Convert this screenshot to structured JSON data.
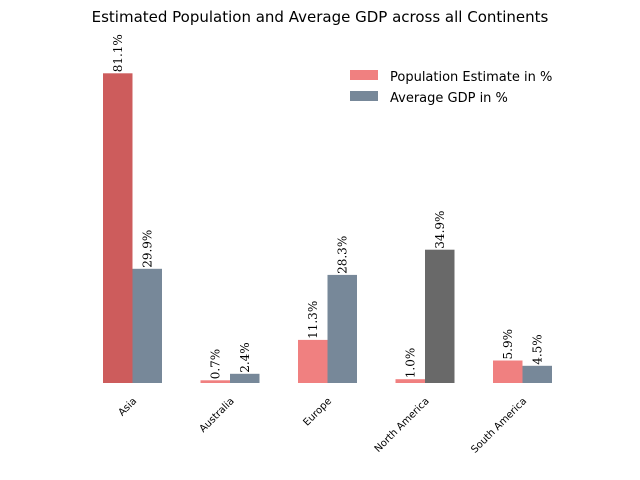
{
  "chart_data": {
    "type": "bar",
    "title": "Estimated Population and Average GDP across all Continents",
    "xlabel": "",
    "ylabel": "",
    "ylim": [
      0,
      88
    ],
    "grid": false,
    "legend_position": "top-right",
    "categories": [
      "Asia",
      "Australia",
      "Europe",
      "North America",
      "South America"
    ],
    "series": [
      {
        "name": "Population Estimate in %",
        "color": "#f08080",
        "values": [
          81.1,
          0.7,
          11.3,
          1.0,
          5.9
        ],
        "labels": [
          "81.1%",
          "0.7%",
          "11.3%",
          "1.0%",
          "5.9%"
        ],
        "bar_colors": [
          "#cd5c5c",
          "#f08080",
          "#f08080",
          "#f08080",
          "#f08080"
        ]
      },
      {
        "name": "Average GDP in %",
        "color": "#778899",
        "values": [
          29.9,
          2.4,
          28.3,
          34.9,
          4.5
        ],
        "labels": [
          "29.9%",
          "2.4%",
          "28.3%",
          "34.9%",
          "4.5%"
        ],
        "bar_colors": [
          "#778899",
          "#778899",
          "#778899",
          "#696969",
          "#778899"
        ]
      }
    ]
  }
}
